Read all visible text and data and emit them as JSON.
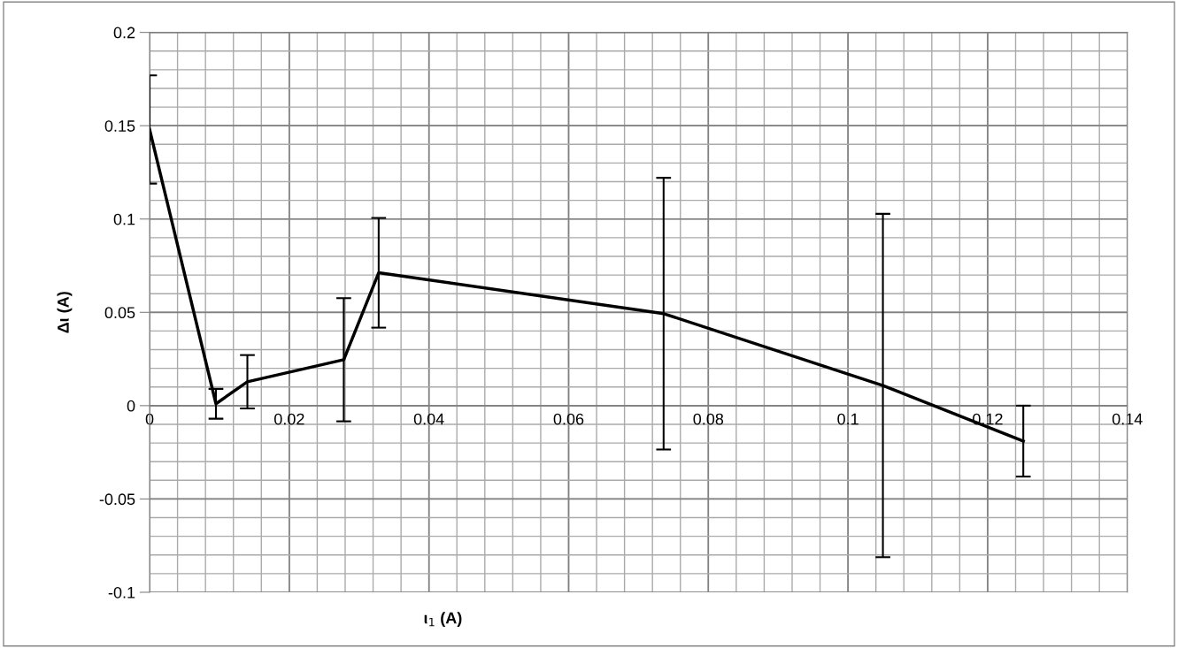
{
  "chart_data": {
    "type": "line",
    "xlabel": "ι$_{1}$ (A)",
    "ylabel": "Δι (A)",
    "x": [
      0,
      0.0095,
      0.014,
      0.0278,
      0.0328,
      0.0736,
      0.105,
      0.1251
    ],
    "series": [
      {
        "color": "#000000",
        "values": [
          0.148,
          0.001,
          0.0128,
          0.0246,
          0.0712,
          0.0493,
          0.0108,
          -0.019
        ],
        "errors": [
          0.029,
          0.008,
          0.0143,
          0.033,
          0.0294,
          0.0728,
          0.092,
          0.019
        ]
      }
    ],
    "xlim": [
      0,
      0.14
    ],
    "xticks": [
      0,
      0.02,
      0.04,
      0.06,
      0.08,
      0.1,
      0.12,
      0.14
    ],
    "ylim": [
      -0.1,
      0.2
    ],
    "yticks": [
      -0.1,
      -0.05,
      0,
      0.05,
      0.1,
      0.15,
      0.2
    ],
    "grid": true,
    "marker": "none",
    "line_style": "solid"
  }
}
